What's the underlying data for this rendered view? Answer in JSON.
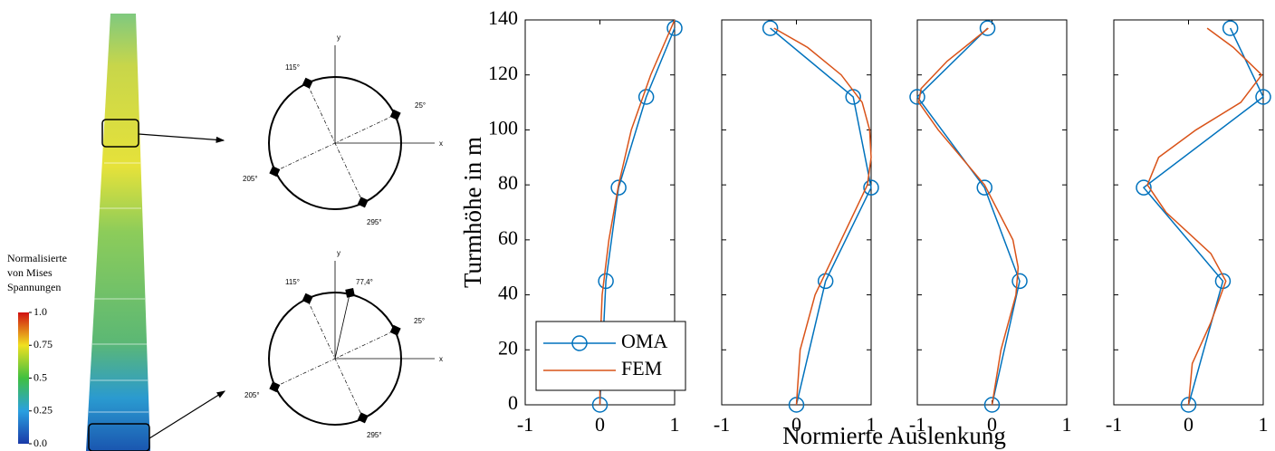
{
  "colorbar": {
    "title_lines": [
      "Normalisierte",
      "von Mises",
      "Spannungen"
    ],
    "lim": [
      0,
      1
    ],
    "ticks": [
      {
        "value": 1,
        "label": "1.0"
      },
      0.75,
      0.5,
      0.25,
      {
        "value": 0,
        "label": "0.0"
      }
    ]
  },
  "diagrams": {
    "top": {
      "y_axis": "y",
      "x_axis": "x",
      "angles": [
        "115°",
        "25°",
        "205°",
        "295°"
      ]
    },
    "bottom": {
      "y_axis": "y",
      "x_axis": "x",
      "angles": [
        "115°",
        "77,4°",
        "25°",
        "205°",
        "295°"
      ]
    }
  },
  "chart_data": [
    {
      "type": "line",
      "ylabel": "Turmhöhe in m",
      "xlim": [
        -1,
        1
      ],
      "ylim": [
        0,
        140
      ],
      "xticks": [
        -1,
        0,
        1
      ],
      "yticks": [
        0,
        20,
        40,
        60,
        80,
        100,
        120,
        140
      ],
      "ytick_labels": true,
      "legend": "lower left",
      "series": [
        {
          "name": "OMA",
          "color": "#0072BD",
          "marker": "circle",
          "x": [
            0,
            0.08,
            0.25,
            0.62,
            1
          ],
          "y": [
            0,
            45,
            79,
            112,
            137
          ]
        },
        {
          "name": "FEM",
          "color": "#D95319",
          "marker": "none",
          "x": [
            0,
            0,
            0.03,
            0.12,
            0.25,
            0.42,
            0.68,
            1
          ],
          "y": [
            0,
            20,
            40,
            60,
            80,
            100,
            120,
            140
          ]
        }
      ]
    },
    {
      "type": "line",
      "xlabel": "Normierte Auslenkung",
      "xlim": [
        -1,
        1
      ],
      "ylim": [
        0,
        140
      ],
      "xticks": [
        -1,
        0,
        1
      ],
      "yticks": [
        0,
        20,
        40,
        60,
        80,
        100,
        120,
        140
      ],
      "ytick_labels": false,
      "series": [
        {
          "color": "#0072BD",
          "marker": "circle",
          "x": [
            0,
            0.39,
            1,
            0.76,
            -0.35
          ],
          "y": [
            0,
            45,
            79,
            112,
            137
          ]
        },
        {
          "color": "#D95319",
          "marker": "none",
          "x": [
            0,
            0.05,
            0.25,
            0.6,
            0.95,
            1,
            0.98,
            0.88,
            0.6,
            0.15,
            -0.3
          ],
          "y": [
            0,
            20,
            40,
            60,
            80,
            90,
            100,
            110,
            120,
            130,
            137
          ]
        }
      ]
    },
    {
      "type": "line",
      "xlim": [
        -1,
        1
      ],
      "ylim": [
        0,
        140
      ],
      "xticks": [
        -1,
        0,
        1
      ],
      "yticks": [
        0,
        20,
        40,
        60,
        80,
        100,
        120,
        140
      ],
      "ytick_labels": false,
      "series": [
        {
          "color": "#0072BD",
          "marker": "circle",
          "x": [
            0,
            0.37,
            -0.1,
            -1,
            -0.06
          ],
          "y": [
            0,
            45,
            79,
            112,
            137
          ]
        },
        {
          "color": "#D95319",
          "marker": "none",
          "x": [
            0,
            0.12,
            0.32,
            0.35,
            0.28,
            -0.1,
            -0.72,
            -0.98,
            -0.95,
            -0.6,
            -0.05
          ],
          "y": [
            0,
            20,
            40,
            50,
            60,
            80,
            100,
            110,
            115,
            125,
            137
          ]
        }
      ]
    },
    {
      "type": "line",
      "xlim": [
        -1,
        1
      ],
      "ylim": [
        0,
        140
      ],
      "xticks": [
        -1,
        0,
        1
      ],
      "yticks": [
        0,
        20,
        40,
        60,
        80,
        100,
        120,
        140
      ],
      "ytick_labels": false,
      "series": [
        {
          "color": "#0072BD",
          "marker": "circle",
          "x": [
            0,
            0.46,
            -0.6,
            1,
            0.56
          ],
          "y": [
            0,
            45,
            79,
            112,
            137
          ]
        },
        {
          "color": "#D95319",
          "marker": "none",
          "x": [
            0,
            0.05,
            0.3,
            0.5,
            0.3,
            -0.3,
            -0.55,
            -0.4,
            0.1,
            0.7,
            0.98,
            0.6,
            0.25
          ],
          "y": [
            0,
            15,
            30,
            45,
            55,
            70,
            80,
            90,
            100,
            110,
            120,
            130,
            137
          ]
        }
      ]
    }
  ]
}
